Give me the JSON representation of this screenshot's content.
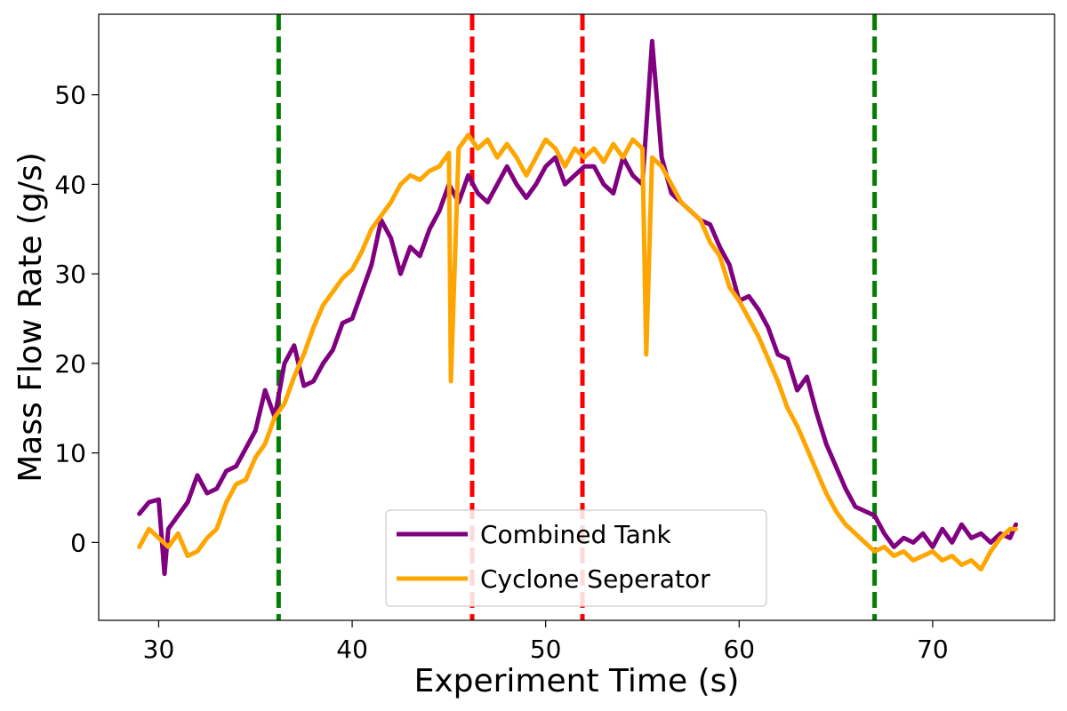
{
  "chart_data": {
    "type": "line",
    "title": "",
    "xlabel": "Experiment Time (s)",
    "ylabel": "Mass Flow Rate (g/s)",
    "xlim": [
      26.9,
      76.3
    ],
    "ylim": [
      -8.7,
      59.0
    ],
    "xticks": [
      30,
      40,
      50,
      60,
      70
    ],
    "yticks": [
      0,
      10,
      20,
      30,
      40,
      50
    ],
    "grid": false,
    "legend_position": "lower center",
    "series": [
      {
        "name": "Combined Tank",
        "color": "#800080",
        "x": [
          29.0,
          29.5,
          30.0,
          30.3,
          30.5,
          31.0,
          31.5,
          32.0,
          32.5,
          33.0,
          33.5,
          34.0,
          34.5,
          35.0,
          35.5,
          36.0,
          36.5,
          37.0,
          37.5,
          38.0,
          38.5,
          39.0,
          39.5,
          40.0,
          40.5,
          41.0,
          41.5,
          42.0,
          42.5,
          43.0,
          43.5,
          44.0,
          44.5,
          45.0,
          45.5,
          46.0,
          46.5,
          47.0,
          47.5,
          48.0,
          48.5,
          49.0,
          49.5,
          50.0,
          50.5,
          51.0,
          51.5,
          52.0,
          52.5,
          53.0,
          53.5,
          54.0,
          54.5,
          55.0,
          55.5,
          56.0,
          56.5,
          57.0,
          57.5,
          58.0,
          58.5,
          59.0,
          59.5,
          60.0,
          60.5,
          61.0,
          61.5,
          62.0,
          62.5,
          63.0,
          63.5,
          64.0,
          64.5,
          65.0,
          65.5,
          66.0,
          66.5,
          67.0,
          67.5,
          68.0,
          68.5,
          69.0,
          69.5,
          70.0,
          70.5,
          71.0,
          71.5,
          72.0,
          72.5,
          73.0,
          73.5,
          74.0,
          74.3
        ],
        "y": [
          3.2,
          4.5,
          4.8,
          -3.5,
          1.5,
          3.0,
          4.5,
          7.5,
          5.5,
          6.0,
          8.0,
          8.5,
          10.5,
          12.5,
          17.0,
          14.0,
          20.0,
          22.0,
          17.5,
          18.0,
          20.0,
          21.5,
          24.5,
          25.0,
          28.0,
          31.0,
          36.0,
          34.0,
          30.0,
          33.0,
          32.0,
          35.0,
          37.0,
          40.0,
          38.0,
          41.0,
          39.0,
          38.0,
          40.0,
          42.0,
          40.0,
          38.5,
          40.0,
          42.0,
          43.0,
          40.0,
          41.0,
          42.0,
          42.0,
          40.0,
          39.0,
          43.0,
          41.0,
          40.0,
          56.0,
          43.0,
          39.0,
          38.0,
          37.0,
          36.0,
          35.5,
          33.0,
          31.0,
          27.0,
          27.5,
          26.0,
          24.0,
          21.0,
          20.5,
          17.0,
          18.5,
          14.5,
          11.0,
          8.5,
          6.0,
          4.0,
          3.5,
          3.0,
          1.0,
          -0.5,
          0.5,
          0.0,
          1.0,
          -0.5,
          1.5,
          0.0,
          2.0,
          0.5,
          1.0,
          0.0,
          1.0,
          0.5,
          2.0
        ]
      },
      {
        "name": "Cyclone Seperator",
        "color": "#FFA500",
        "x": [
          29.0,
          29.5,
          30.0,
          30.5,
          31.0,
          31.5,
          32.0,
          32.5,
          33.0,
          33.5,
          34.0,
          34.5,
          35.0,
          35.5,
          36.0,
          36.5,
          37.0,
          37.5,
          38.0,
          38.5,
          39.0,
          39.5,
          40.0,
          40.5,
          41.0,
          41.5,
          42.0,
          42.5,
          43.0,
          43.5,
          44.0,
          44.5,
          45.0,
          45.1,
          45.5,
          46.0,
          46.5,
          47.0,
          47.5,
          48.0,
          48.5,
          49.0,
          49.5,
          50.0,
          50.5,
          51.0,
          51.5,
          52.0,
          52.5,
          53.0,
          53.5,
          54.0,
          54.5,
          55.0,
          55.2,
          55.5,
          56.0,
          56.5,
          57.0,
          57.5,
          58.0,
          58.5,
          59.0,
          59.5,
          60.0,
          60.5,
          61.0,
          61.5,
          62.0,
          62.5,
          63.0,
          63.5,
          64.0,
          64.5,
          65.0,
          65.5,
          66.0,
          66.5,
          67.0,
          67.5,
          68.0,
          68.5,
          69.0,
          69.5,
          70.0,
          70.5,
          71.0,
          71.5,
          72.0,
          72.5,
          73.0,
          73.5,
          74.0,
          74.3
        ],
        "y": [
          -0.5,
          1.5,
          0.5,
          -0.5,
          1.0,
          -1.5,
          -1.0,
          0.5,
          1.5,
          4.5,
          6.5,
          7.0,
          9.5,
          11.0,
          14.0,
          15.5,
          18.5,
          21.0,
          24.0,
          26.5,
          28.0,
          29.5,
          30.5,
          32.5,
          35.0,
          36.5,
          38.0,
          40.0,
          41.0,
          40.5,
          41.5,
          42.0,
          43.5,
          18.0,
          44.0,
          45.5,
          44.0,
          45.0,
          43.0,
          44.5,
          43.0,
          41.0,
          43.0,
          45.0,
          44.0,
          42.0,
          44.0,
          43.0,
          44.0,
          42.5,
          44.5,
          43.0,
          45.0,
          44.0,
          21.0,
          43.0,
          42.0,
          40.0,
          38.0,
          37.0,
          36.0,
          33.5,
          32.0,
          28.5,
          27.0,
          25.0,
          23.0,
          20.5,
          18.0,
          15.0,
          13.0,
          10.5,
          8.0,
          5.5,
          3.5,
          2.0,
          1.0,
          0.0,
          -1.0,
          -0.5,
          -1.5,
          -1.0,
          -2.0,
          -1.5,
          -1.0,
          -2.0,
          -1.5,
          -2.5,
          -2.0,
          -3.0,
          -1.0,
          0.5,
          1.5,
          1.5
        ]
      }
    ],
    "vertical_lines": [
      {
        "x": 36.2,
        "color": "#008000",
        "style": "dashed"
      },
      {
        "x": 46.2,
        "color": "#FF0000",
        "style": "dashed"
      },
      {
        "x": 51.9,
        "color": "#FF0000",
        "style": "dashed"
      },
      {
        "x": 67.0,
        "color": "#008000",
        "style": "dashed"
      }
    ]
  }
}
